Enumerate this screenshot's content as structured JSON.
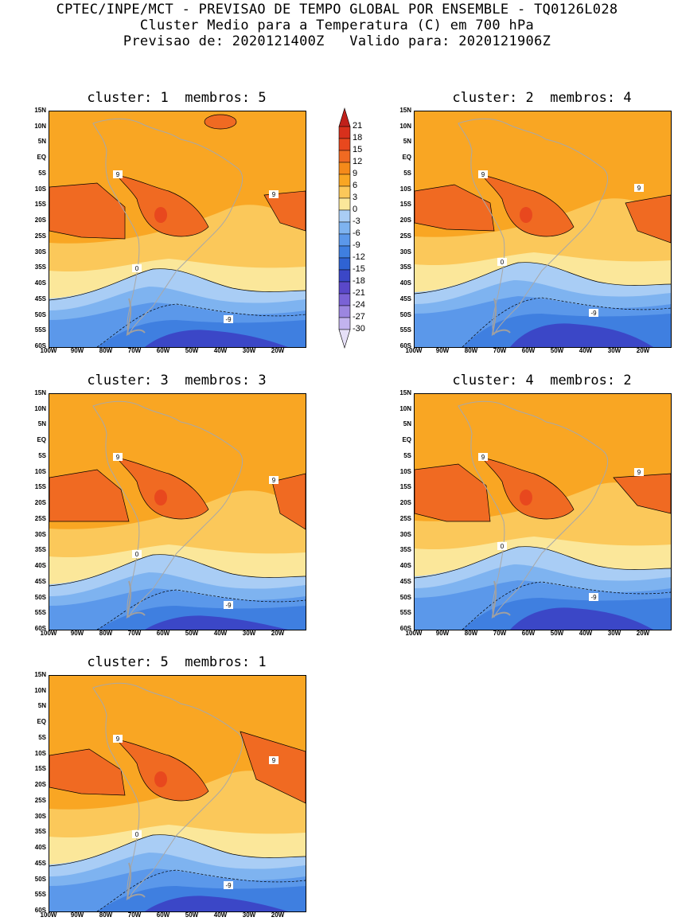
{
  "header": {
    "line1": "CPTEC/INPE/MCT - PREVISAO DE TEMPO GLOBAL POR ENSEMBLE - TQ0126L028",
    "line2": "Cluster Medio para a Temperatura (C) em 700 hPa",
    "line3": "Previsao de: 2020121400Z   Valido para: 2020121906Z"
  },
  "panels": [
    {
      "title": "cluster: 1  membros: 5"
    },
    {
      "title": "cluster: 2  membros: 4"
    },
    {
      "title": "cluster: 3  membros: 3"
    },
    {
      "title": "cluster: 4  membros: 2"
    },
    {
      "title": "cluster: 5  membros: 1"
    }
  ],
  "lat_ticks": [
    "15N",
    "10N",
    "5N",
    "EQ",
    "5S",
    "10S",
    "15S",
    "20S",
    "25S",
    "30S",
    "35S",
    "40S",
    "45S",
    "50S",
    "55S",
    "60S"
  ],
  "lon_ticks": [
    "100W",
    "90W",
    "80W",
    "70W",
    "60W",
    "50W",
    "40W",
    "30W",
    "20W"
  ],
  "colorbar": {
    "levels": [
      "21",
      "18",
      "15",
      "12",
      "9",
      "6",
      "3",
      "0",
      "-3",
      "-6",
      "-9",
      "-12",
      "-15",
      "-18",
      "-21",
      "-24",
      "-27",
      "-30"
    ],
    "colors": [
      "#c0201a",
      "#d8301c",
      "#e8481e",
      "#f06a22",
      "#f58a1a",
      "#f9a623",
      "#fbc85a",
      "#fbe79a",
      "#a9cdf5",
      "#7eb3f0",
      "#5b98ea",
      "#3f7fe0",
      "#2f63d3",
      "#3b47c7",
      "#5a48c9",
      "#7a62d6",
      "#9c86e0",
      "#c2b3ee",
      "#e6e0f7"
    ]
  },
  "contour_labels": {
    "warm": "9",
    "zero": "0",
    "cold": "-9"
  }
}
